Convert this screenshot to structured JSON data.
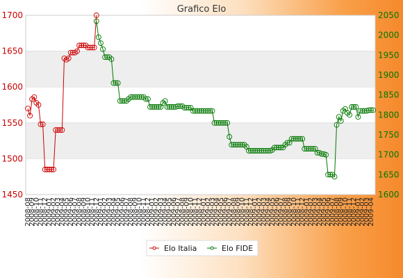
{
  "chart_data": {
    "type": "line",
    "title": "Grafico Elo",
    "xlabel": "",
    "ylabel": "",
    "grid": true,
    "legend_position": "bottom",
    "y_left": {
      "ylim": [
        1450,
        1700
      ],
      "ticks": [
        1450,
        1500,
        1550,
        1600,
        1650,
        1700
      ],
      "color": "#cc0000"
    },
    "y_right": {
      "ylim": [
        1600,
        2050
      ],
      "ticks": [
        1600,
        1650,
        1700,
        1750,
        1800,
        1850,
        1900,
        1950,
        2000,
        2050
      ],
      "color": "#007700"
    },
    "series": [
      {
        "name": "Elo Italia",
        "axis": "left",
        "color": "#cc0000",
        "values": [
          1570,
          1560,
          1583,
          1586,
          1578,
          1575,
          1548,
          1548,
          1485,
          1485,
          1485,
          1485,
          1485,
          1540,
          1540,
          1540,
          1540,
          1640,
          1638,
          1640,
          1648,
          1648,
          1648,
          1650,
          1658,
          1658,
          1658,
          1658,
          1655,
          1655,
          1655,
          1655,
          1700
        ]
      },
      {
        "name": "Elo FIDE",
        "axis": "right",
        "color": "#007700",
        "x_start": 32,
        "values": [
          2035,
          1995,
          1980,
          1965,
          1945,
          1945,
          1945,
          1940,
          1880,
          1880,
          1880,
          1835,
          1835,
          1835,
          1835,
          1840,
          1845,
          1845,
          1845,
          1845,
          1845,
          1845,
          1845,
          1840,
          1840,
          1820,
          1820,
          1820,
          1820,
          1820,
          1820,
          1830,
          1835,
          1820,
          1820,
          1820,
          1820,
          1820,
          1822,
          1822,
          1822,
          1818,
          1818,
          1818,
          1818,
          1810,
          1810,
          1810,
          1810,
          1810,
          1810,
          1810,
          1810,
          1810,
          1810,
          1780,
          1780,
          1780,
          1780,
          1780,
          1780,
          1780,
          1745,
          1725,
          1725,
          1725,
          1725,
          1725,
          1725,
          1725,
          1720,
          1710,
          1710,
          1710,
          1710,
          1710,
          1710,
          1710,
          1710,
          1710,
          1710,
          1710,
          1712,
          1718,
          1718,
          1718,
          1718,
          1718,
          1725,
          1730,
          1730,
          1740,
          1740,
          1740,
          1740,
          1740,
          1740,
          1715,
          1715,
          1715,
          1715,
          1715,
          1715,
          1705,
          1705,
          1702,
          1702,
          1700,
          1650,
          1650,
          1650,
          1645,
          1775,
          1795,
          1785,
          1810,
          1815,
          1805,
          1800,
          1820,
          1820,
          1820,
          1795,
          1810,
          1810,
          1810,
          1810,
          1812,
          1812,
          1812
        ]
      }
    ],
    "x_tick_pattern": [
      "2008-08",
      "2008-09",
      "2008-10",
      "2008-11",
      "2008-12",
      "2009-01",
      "2009-02",
      "2009-03",
      "2009-04",
      "2009-05",
      "2009-06",
      "2009-07"
    ]
  }
}
